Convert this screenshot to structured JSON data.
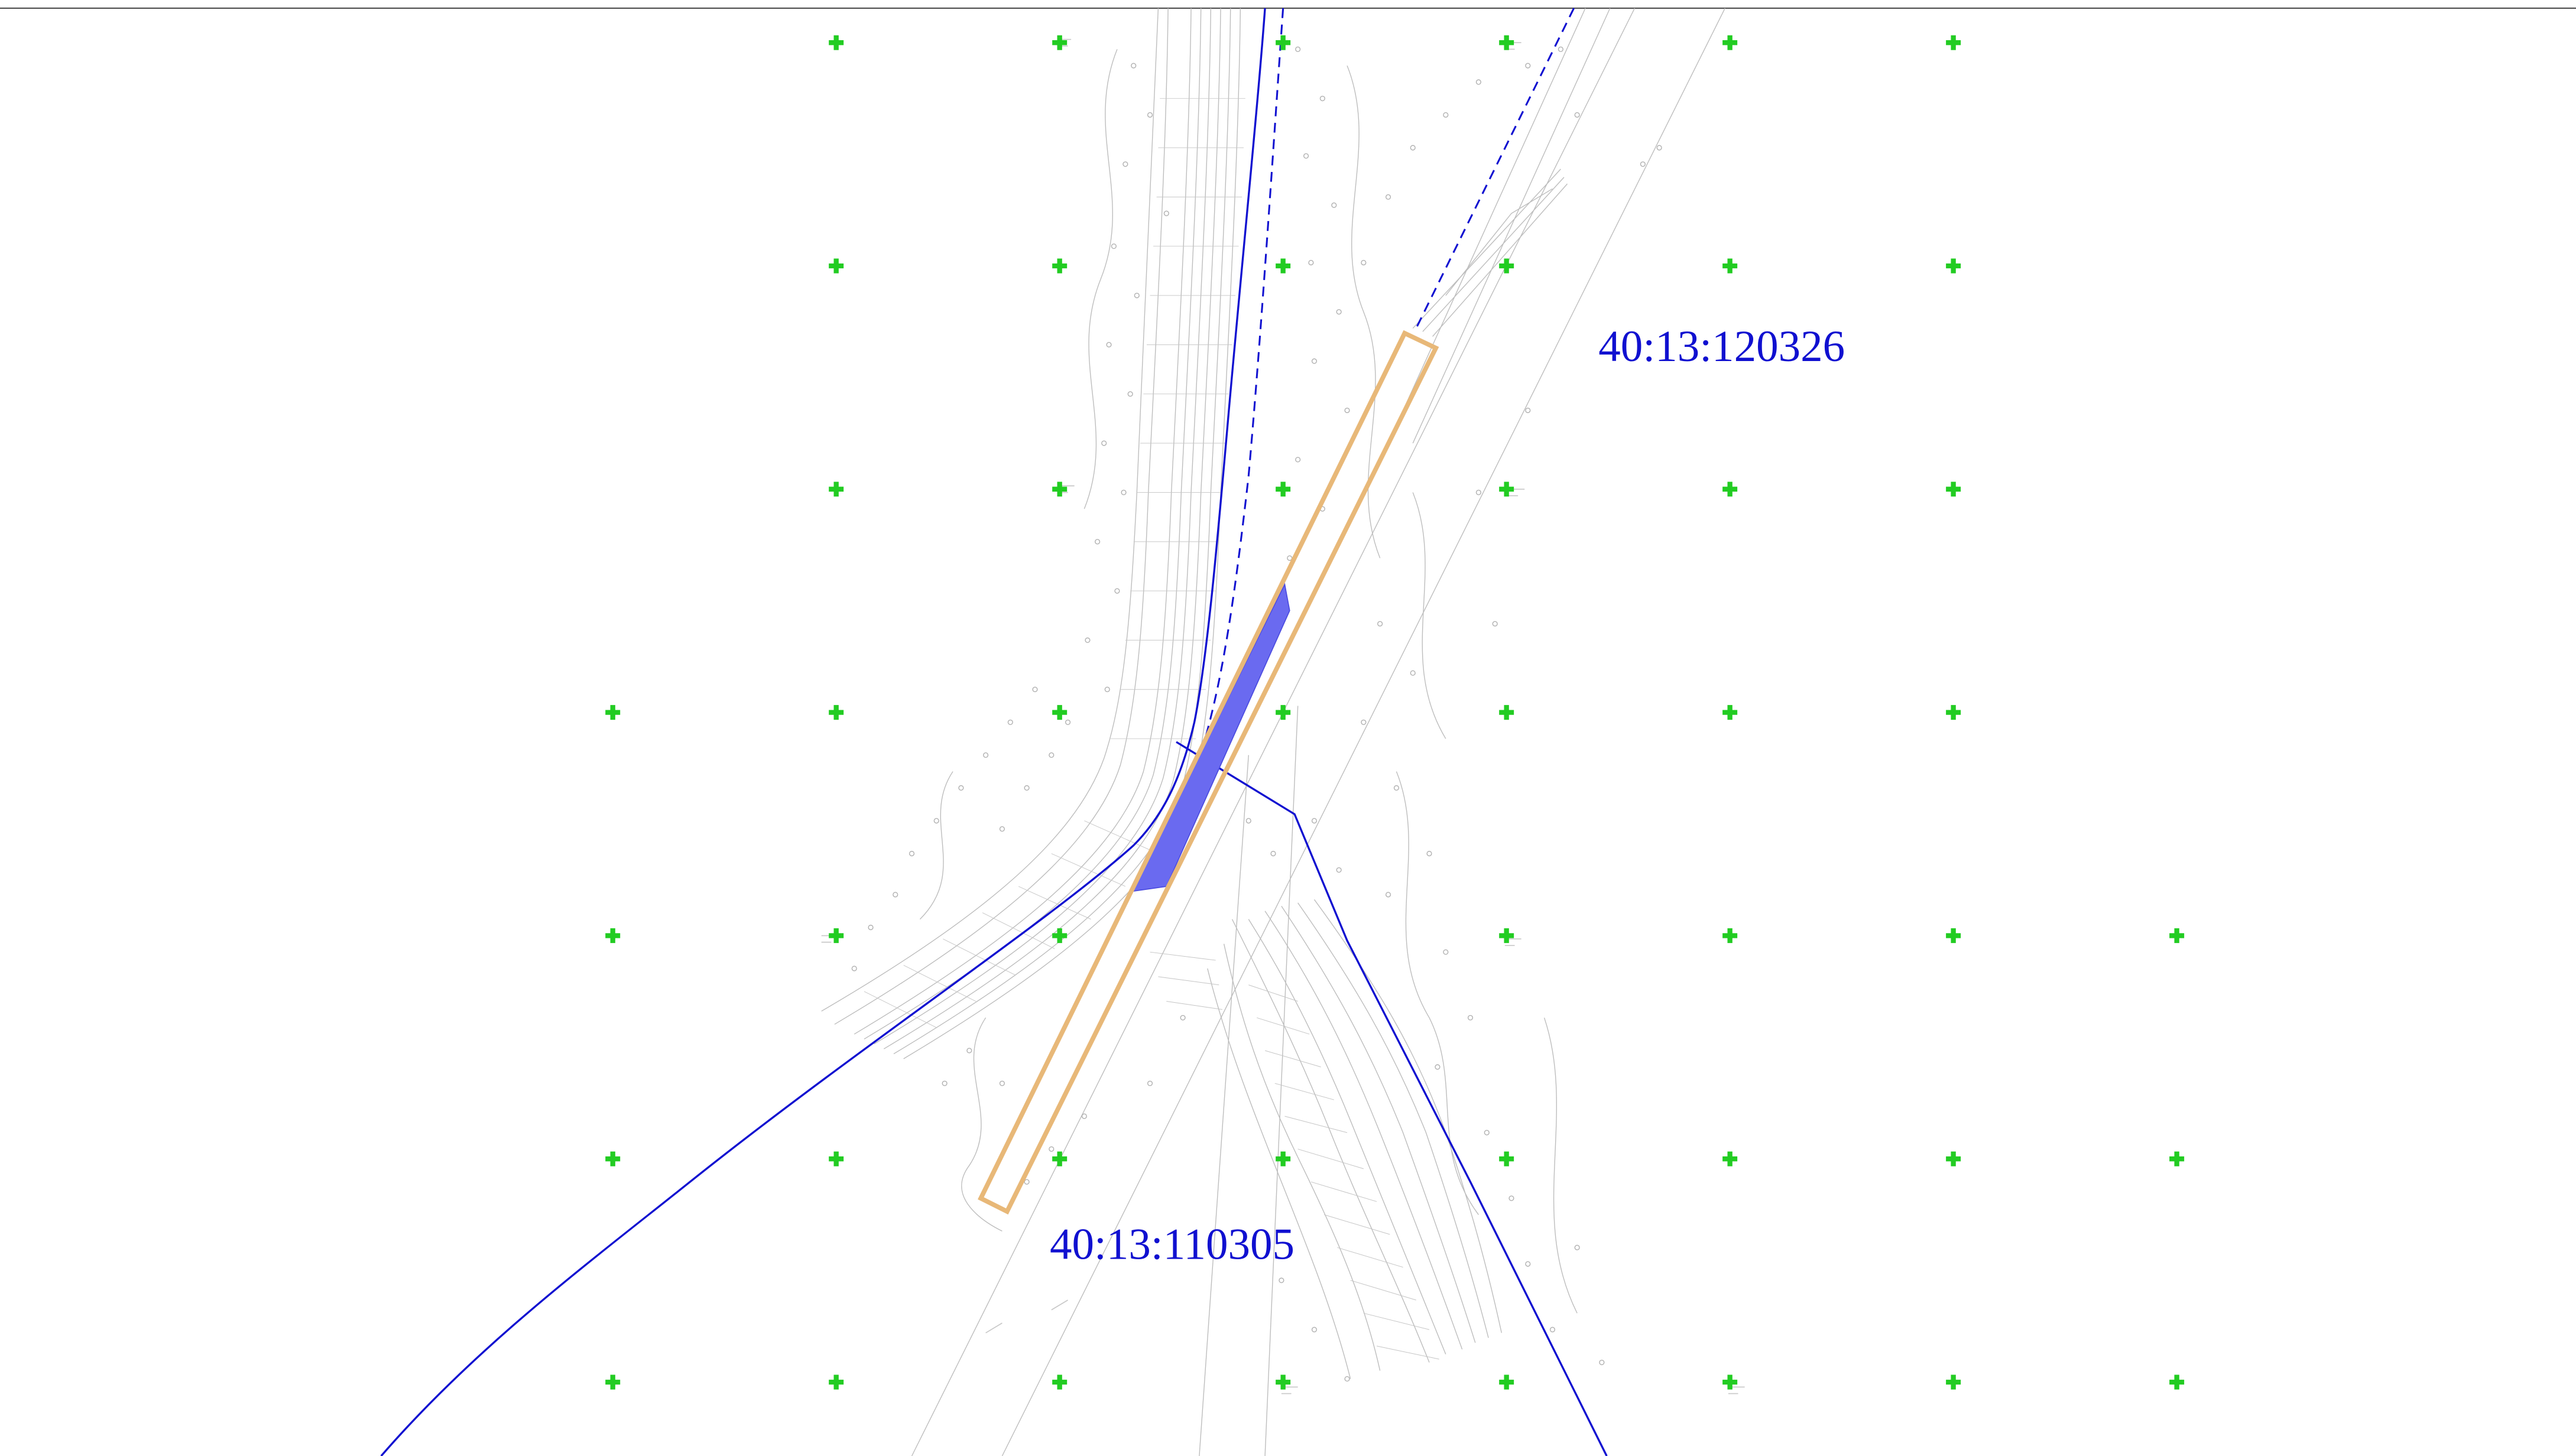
{
  "map": {
    "parcels": [
      {
        "id": "parcel-120326",
        "label": "40:13:120326"
      },
      {
        "id": "parcel-110305",
        "label": "40:13:110305"
      }
    ],
    "colors": {
      "background": "#ffffff",
      "frame_line": "#555555",
      "boundary_line": "#1010d0",
      "boundary_dashed": "#1010d0",
      "highlight_fill": "#6a6af0",
      "project_outline": "#e8b878",
      "grid_cross": "#22cc22",
      "topo_lines": "#b8b8b8",
      "parcel_label": "#1010d0"
    },
    "icons": {
      "grid_marker": "green-plus-cross"
    }
  }
}
